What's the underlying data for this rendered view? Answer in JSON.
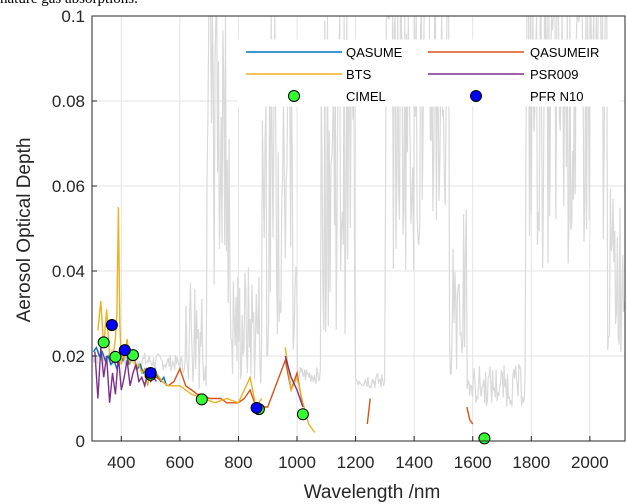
{
  "caption_top": "nature gas absorptions.",
  "chart_data": {
    "type": "line",
    "title": "",
    "xlabel": "Wavelength /nm",
    "ylabel": "Aerosol Optical Depth",
    "xlim": [
      300,
      2120
    ],
    "ylim": [
      0,
      0.1
    ],
    "xticks": [
      400,
      600,
      800,
      1000,
      1200,
      1400,
      1600,
      1800,
      2000
    ],
    "yticks": [
      0,
      0.02,
      0.04,
      0.06,
      0.08,
      0.1
    ],
    "xtick_labels": [
      "400",
      "600",
      "800",
      "1000",
      "1200",
      "1400",
      "1600",
      "1800",
      "2000"
    ],
    "ytick_labels": [
      "0",
      "0.02",
      "0.04",
      "0.06",
      "0.08",
      "0.1"
    ],
    "grid": true,
    "legend_position": "top-right",
    "colors": {
      "background_trace": "#d9d9d9",
      "QASUME": "#0072bd",
      "QASUMEIR": "#d95319",
      "BTS": "#edb120",
      "PSR009": "#7e2f8e",
      "CIMEL": "#33ff33",
      "PFR N10": "#0000ff"
    },
    "legend": [
      {
        "name": "QASUME",
        "kind": "line"
      },
      {
        "name": "QASUMEIR",
        "kind": "line"
      },
      {
        "name": "BTS",
        "kind": "line"
      },
      {
        "name": "PSR009",
        "kind": "line"
      },
      {
        "name": "CIMEL",
        "kind": "marker"
      },
      {
        "name": "PFR N10",
        "kind": "marker"
      }
    ],
    "series": [
      {
        "name": "QASUME",
        "x": [
          305,
          315,
          325,
          335,
          345,
          355,
          365,
          375,
          385,
          395,
          405,
          415,
          425,
          435,
          445,
          455,
          465,
          475,
          485,
          495,
          505,
          515,
          525,
          535,
          545,
          555
        ],
        "y": [
          0.021,
          0.022,
          0.02,
          0.021,
          0.019,
          0.02,
          0.018,
          0.019,
          0.017,
          0.02,
          0.019,
          0.022,
          0.018,
          0.021,
          0.019,
          0.017,
          0.018,
          0.016,
          0.017,
          0.015,
          0.016,
          0.017,
          0.015,
          0.014,
          0.015,
          0.013
        ]
      },
      {
        "name": "QASUMEIR",
        "x": [
          480,
          500,
          520,
          540,
          560,
          580,
          600,
          620,
          640,
          660,
          680,
          700,
          720,
          740,
          760,
          780,
          800,
          820,
          840,
          860,
          870,
          880,
          900,
          960,
          980,
          1000,
          1020,
          1240,
          1250,
          1580,
          1590,
          1600
        ],
        "y": [
          0.015,
          0.016,
          0.015,
          0.014,
          0.013,
          0.014,
          0.017,
          0.013,
          0.012,
          0.011,
          0.011,
          0.01,
          0.01,
          0.01,
          0.009,
          0.009,
          0.009,
          0.01,
          0.012,
          0.008,
          0.009,
          0.008,
          0.008,
          0.019,
          0.012,
          0.016,
          0.008,
          0.004,
          0.01,
          0.008,
          0.005,
          0.004
        ]
      },
      {
        "name": "BTS",
        "x": [
          320,
          330,
          340,
          350,
          360,
          370,
          380,
          385,
          390,
          395,
          400,
          405,
          410,
          420,
          430,
          440,
          450,
          460,
          470,
          480,
          490,
          500,
          510,
          520,
          540,
          560,
          600,
          640,
          680,
          720,
          760,
          800,
          840,
          860,
          880,
          960,
          980,
          1000,
          1020,
          1040,
          1060
        ],
        "y": [
          0.026,
          0.033,
          0.022,
          0.031,
          0.02,
          0.019,
          0.024,
          0.03,
          0.055,
          0.028,
          0.018,
          0.022,
          0.019,
          0.024,
          0.018,
          0.021,
          0.017,
          0.018,
          0.016,
          0.017,
          0.013,
          0.017,
          0.015,
          0.016,
          0.014,
          0.013,
          0.013,
          0.011,
          0.01,
          0.009,
          0.01,
          0.009,
          0.015,
          0.008,
          0.01,
          0.022,
          0.012,
          0.015,
          0.009,
          0.004,
          0.002
        ]
      },
      {
        "name": "PSR009",
        "x": [
          310,
          320,
          330,
          340,
          350,
          360,
          370,
          380,
          390,
          400,
          410,
          420,
          430,
          440,
          450,
          460,
          470,
          480,
          490,
          500,
          510,
          520,
          960,
          980,
          1000,
          1020
        ],
        "y": [
          0.021,
          0.01,
          0.022,
          0.015,
          0.02,
          0.009,
          0.016,
          0.011,
          0.02,
          0.012,
          0.015,
          0.019,
          0.013,
          0.016,
          0.018,
          0.014,
          0.015,
          0.013,
          0.016,
          0.014,
          0.015,
          0.014,
          0.02,
          0.015,
          0.012,
          0.008
        ]
      },
      {
        "name": "CIMEL",
        "x": [
          340,
          380,
          440,
          500,
          675,
          870,
          1020,
          1640
        ],
        "y": [
          0.0232,
          0.0198,
          0.0202,
          0.0156,
          0.0098,
          0.0075,
          0.0063,
          0.0006
        ]
      },
      {
        "name": "PFR N10",
        "x": [
          368,
          412,
          500,
          862
        ],
        "y": [
          0.0273,
          0.0214,
          0.016,
          0.0078
        ]
      }
    ]
  }
}
